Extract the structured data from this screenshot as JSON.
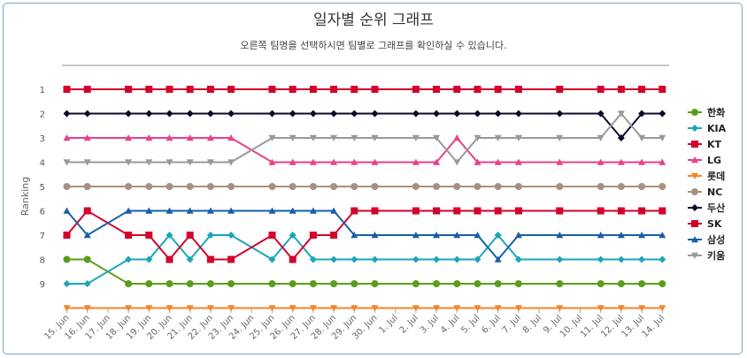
{
  "title": "일자별 순위 그래프",
  "subtitle": "오른쪽 팀명을 선택하시면 팀별로 그래프를 확인하실 수 있습니다.",
  "chart_data": {
    "type": "line",
    "ylabel": "Ranking",
    "xlabel": "",
    "ylim": [
      1,
      10
    ],
    "y_reversed": true,
    "y_ticks": [
      "1",
      "2",
      "3",
      "4",
      "5",
      "6",
      "7",
      "8",
      "9"
    ],
    "categories": [
      "15. Jun",
      "16. Jun",
      "17. Jun",
      "18. Jun",
      "19. Jun",
      "20. Jun",
      "21. Jun",
      "22. Jun",
      "23. Jun",
      "24. Jun",
      "25. Jun",
      "26. Jun",
      "27. Jun",
      "28. Jun",
      "29. Jun",
      "30. Jun",
      "1. Jul",
      "2. Jul",
      "3. Jul",
      "4. Jul",
      "5. Jul",
      "6. Jul",
      "7. Jul",
      "8. Jul",
      "9. Jul",
      "10. Jul",
      "11. Jul",
      "12. Jul",
      "13. Jul",
      "14. Jul"
    ],
    "legend_position": "right",
    "series": [
      {
        "name": "한화",
        "color": "#5a9e1a",
        "marker": "circle",
        "values": [
          8,
          8,
          null,
          9,
          9,
          9,
          9,
          9,
          9,
          null,
          9,
          9,
          9,
          9,
          9,
          9,
          null,
          9,
          9,
          9,
          9,
          9,
          9,
          null,
          9,
          null,
          9,
          9,
          9,
          9
        ]
      },
      {
        "name": "KIA",
        "color": "#1aa6b7",
        "marker": "diamond",
        "values": [
          9,
          9,
          null,
          8,
          8,
          7,
          8,
          7,
          7,
          null,
          8,
          7,
          8,
          8,
          8,
          8,
          null,
          8,
          8,
          8,
          8,
          7,
          8,
          null,
          8,
          null,
          8,
          8,
          8,
          8
        ]
      },
      {
        "name": "KT",
        "color": "#d4002a",
        "marker": "square",
        "values": [
          1,
          1,
          null,
          1,
          1,
          1,
          1,
          1,
          1,
          null,
          1,
          1,
          1,
          1,
          1,
          1,
          null,
          1,
          1,
          1,
          1,
          1,
          1,
          null,
          1,
          null,
          1,
          1,
          1,
          1
        ]
      },
      {
        "name": "LG",
        "color": "#e8418a",
        "marker": "triangle",
        "values": [
          3,
          3,
          null,
          3,
          3,
          3,
          3,
          3,
          3,
          null,
          4,
          4,
          4,
          4,
          4,
          4,
          null,
          4,
          4,
          3,
          4,
          4,
          4,
          null,
          4,
          null,
          4,
          4,
          4,
          4
        ]
      },
      {
        "name": "롯데",
        "color": "#f2862e",
        "marker": "triangle-down",
        "values": [
          10,
          10,
          null,
          10,
          10,
          10,
          10,
          10,
          10,
          null,
          10,
          10,
          10,
          10,
          10,
          10,
          null,
          10,
          10,
          10,
          10,
          10,
          10,
          null,
          10,
          null,
          10,
          10,
          10,
          10
        ]
      },
      {
        "name": "NC",
        "color": "#a89080",
        "marker": "circle",
        "values": [
          5,
          5,
          null,
          5,
          5,
          5,
          5,
          5,
          5,
          null,
          5,
          5,
          5,
          5,
          5,
          5,
          null,
          5,
          5,
          5,
          5,
          5,
          5,
          null,
          5,
          null,
          5,
          5,
          5,
          5
        ]
      },
      {
        "name": "두산",
        "color": "#0a0a2a",
        "marker": "diamond",
        "values": [
          2,
          2,
          null,
          2,
          2,
          2,
          2,
          2,
          2,
          null,
          2,
          2,
          2,
          2,
          2,
          2,
          null,
          2,
          2,
          2,
          2,
          2,
          2,
          null,
          2,
          null,
          2,
          3,
          2,
          2
        ]
      },
      {
        "name": "SK",
        "color": "#d4002a",
        "marker": "square",
        "values": [
          7,
          6,
          null,
          7,
          7,
          8,
          7,
          8,
          8,
          null,
          7,
          8,
          7,
          7,
          6,
          6,
          null,
          6,
          6,
          6,
          6,
          6,
          6,
          null,
          6,
          null,
          6,
          6,
          6,
          6
        ]
      },
      {
        "name": "삼성",
        "color": "#1a5ea8",
        "marker": "triangle",
        "values": [
          6,
          7,
          null,
          6,
          6,
          6,
          6,
          6,
          6,
          null,
          6,
          6,
          6,
          6,
          7,
          7,
          null,
          7,
          7,
          7,
          7,
          8,
          7,
          null,
          7,
          null,
          7,
          7,
          7,
          7
        ]
      },
      {
        "name": "키움",
        "color": "#999999",
        "marker": "triangle-down",
        "values": [
          4,
          4,
          null,
          4,
          4,
          4,
          4,
          4,
          4,
          null,
          3,
          3,
          3,
          3,
          3,
          3,
          null,
          3,
          3,
          4,
          3,
          3,
          3,
          null,
          3,
          null,
          3,
          2,
          3,
          3
        ]
      }
    ]
  }
}
